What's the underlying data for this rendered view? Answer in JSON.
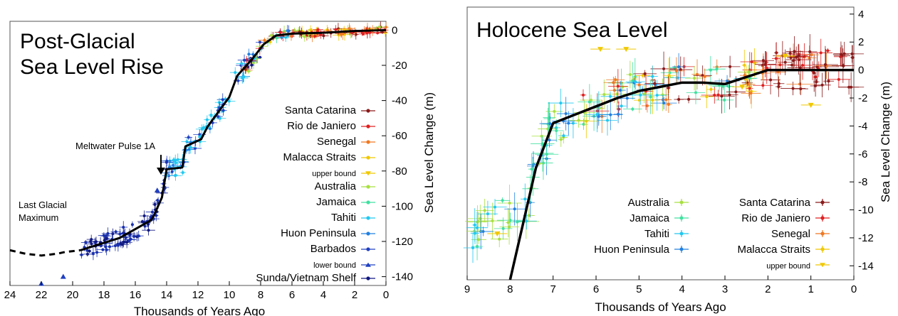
{
  "chart_data": [
    {
      "type": "scatter",
      "title": "Post-Glacial Sea Level Rise",
      "title_lines": [
        "Post-Glacial",
        "Sea Level Rise"
      ],
      "xlabel": "Thousands of Years Ago",
      "ylabel": "Sea Level Change (m)",
      "xlim": [
        24,
        0
      ],
      "ylim": [
        -145,
        5
      ],
      "xticks": [
        24,
        22,
        20,
        18,
        16,
        14,
        12,
        10,
        8,
        6,
        4,
        2,
        0
      ],
      "yticks": [
        0,
        -20,
        -40,
        -60,
        -80,
        -100,
        -120,
        -140
      ],
      "legend_position": "right",
      "annotations": [
        {
          "text": "Meltwater Pulse 1A",
          "x": 14.5,
          "y": -78
        },
        {
          "text_lines": [
            "Last Glacial",
            "Maximum"
          ],
          "x": 21,
          "y": -105
        }
      ],
      "legend": [
        {
          "name": "Santa Catarina",
          "color": "#8b1a1a",
          "marker": "dot"
        },
        {
          "name": "Rio de Janiero",
          "color": "#e02020",
          "marker": "dot"
        },
        {
          "name": "Senegal",
          "color": "#f07820",
          "marker": "dot"
        },
        {
          "name": "Malacca Straits",
          "color": "#f0c800",
          "marker": "dot"
        },
        {
          "name": "upper bound",
          "color": "#f0c800",
          "marker": "tri-down",
          "small": true
        },
        {
          "name": "Australia",
          "color": "#a8e040",
          "marker": "dot"
        },
        {
          "name": "Jamaica",
          "color": "#40e0a0",
          "marker": "dot"
        },
        {
          "name": "Tahiti",
          "color": "#20c8f0",
          "marker": "dot"
        },
        {
          "name": "Huon Peninsula",
          "color": "#2080e0",
          "marker": "dot"
        },
        {
          "name": "Barbados",
          "color": "#2040c0",
          "marker": "dot"
        },
        {
          "name": "lower bound",
          "color": "#2040c0",
          "marker": "tri-up",
          "small": true
        },
        {
          "name": "Sunda/Vietnam Shelf",
          "color": "#101880",
          "marker": "dot"
        }
      ],
      "curve": {
        "x": [
          19.5,
          17,
          15,
          14.8,
          14.3,
          14.0,
          13.0,
          12.8,
          11.8,
          11.4,
          10.0,
          9.5,
          8.5,
          7.8,
          7.0,
          6.0,
          4.0,
          2.0,
          0
        ],
        "y": [
          -125,
          -118,
          -108,
          -105,
          -95,
          -79,
          -78,
          -66,
          -62,
          -55,
          -38,
          -26,
          -16,
          -8,
          -3,
          -2,
          -1.5,
          -0.5,
          0
        ]
      },
      "lgm_dashed_curve": {
        "x": [
          24,
          23,
          22,
          21,
          20.5,
          19.5
        ],
        "y": [
          -125,
          -127,
          -128,
          -127,
          -126,
          -125
        ]
      },
      "bound_markers": [
        {
          "x": 22.0,
          "y": -144,
          "type": "lower"
        },
        {
          "x": 20.6,
          "y": -140,
          "type": "lower"
        },
        {
          "x": 14.6,
          "y": -91,
          "type": "lower"
        }
      ]
    },
    {
      "type": "scatter",
      "title": "Holocene Sea Level",
      "xlabel": "Thousands of Years Ago",
      "ylabel": "Sea Level Change (m)",
      "xlim": [
        9,
        0
      ],
      "ylim": [
        -15,
        4.5
      ],
      "xticks": [
        9,
        8,
        7,
        6,
        5,
        4,
        3,
        2,
        1,
        0
      ],
      "yticks": [
        4,
        2,
        0,
        -2,
        -4,
        -6,
        -8,
        -10,
        -12,
        -14
      ],
      "legend_position": "bottom-right",
      "legend_left": [
        {
          "name": "Australia",
          "color": "#a8e040"
        },
        {
          "name": "Jamaica",
          "color": "#40e0a0"
        },
        {
          "name": "Tahiti",
          "color": "#20c8f0"
        },
        {
          "name": "Huon Peninsula",
          "color": "#2080e0"
        }
      ],
      "legend_right": [
        {
          "name": "Santa Catarina",
          "color": "#8b1a1a",
          "marker": "dot"
        },
        {
          "name": "Rio de Janiero",
          "color": "#e02020",
          "marker": "dot"
        },
        {
          "name": "Senegal",
          "color": "#f07820",
          "marker": "dot"
        },
        {
          "name": "Malacca Straits",
          "color": "#f0c800",
          "marker": "dot"
        },
        {
          "name": "upper bound",
          "color": "#f0c800",
          "marker": "tri-down",
          "small": true
        }
      ],
      "curve": {
        "x": [
          8.0,
          7.7,
          7.4,
          7.0,
          6.5,
          6.0,
          5.5,
          5.0,
          4.5,
          4.0,
          3.5,
          3.0,
          2.5,
          2.0,
          1.5,
          1.0,
          0.5,
          0
        ],
        "y": [
          -15,
          -11,
          -7,
          -3.8,
          -3.2,
          -2.6,
          -2.0,
          -1.5,
          -1.2,
          -0.9,
          -0.9,
          -1.0,
          -0.5,
          0.0,
          0.0,
          0.0,
          0.0,
          0.0
        ]
      },
      "upper_bound_markers": [
        {
          "x": 5.9,
          "y": 1.5
        },
        {
          "x": 5.3,
          "y": 1.5
        },
        {
          "x": 2.6,
          "y": -1.2
        },
        {
          "x": 1.6,
          "y": 1.0
        },
        {
          "x": 1.0,
          "y": -2.5
        },
        {
          "x": 8.3,
          "y": -11.7
        }
      ]
    }
  ]
}
